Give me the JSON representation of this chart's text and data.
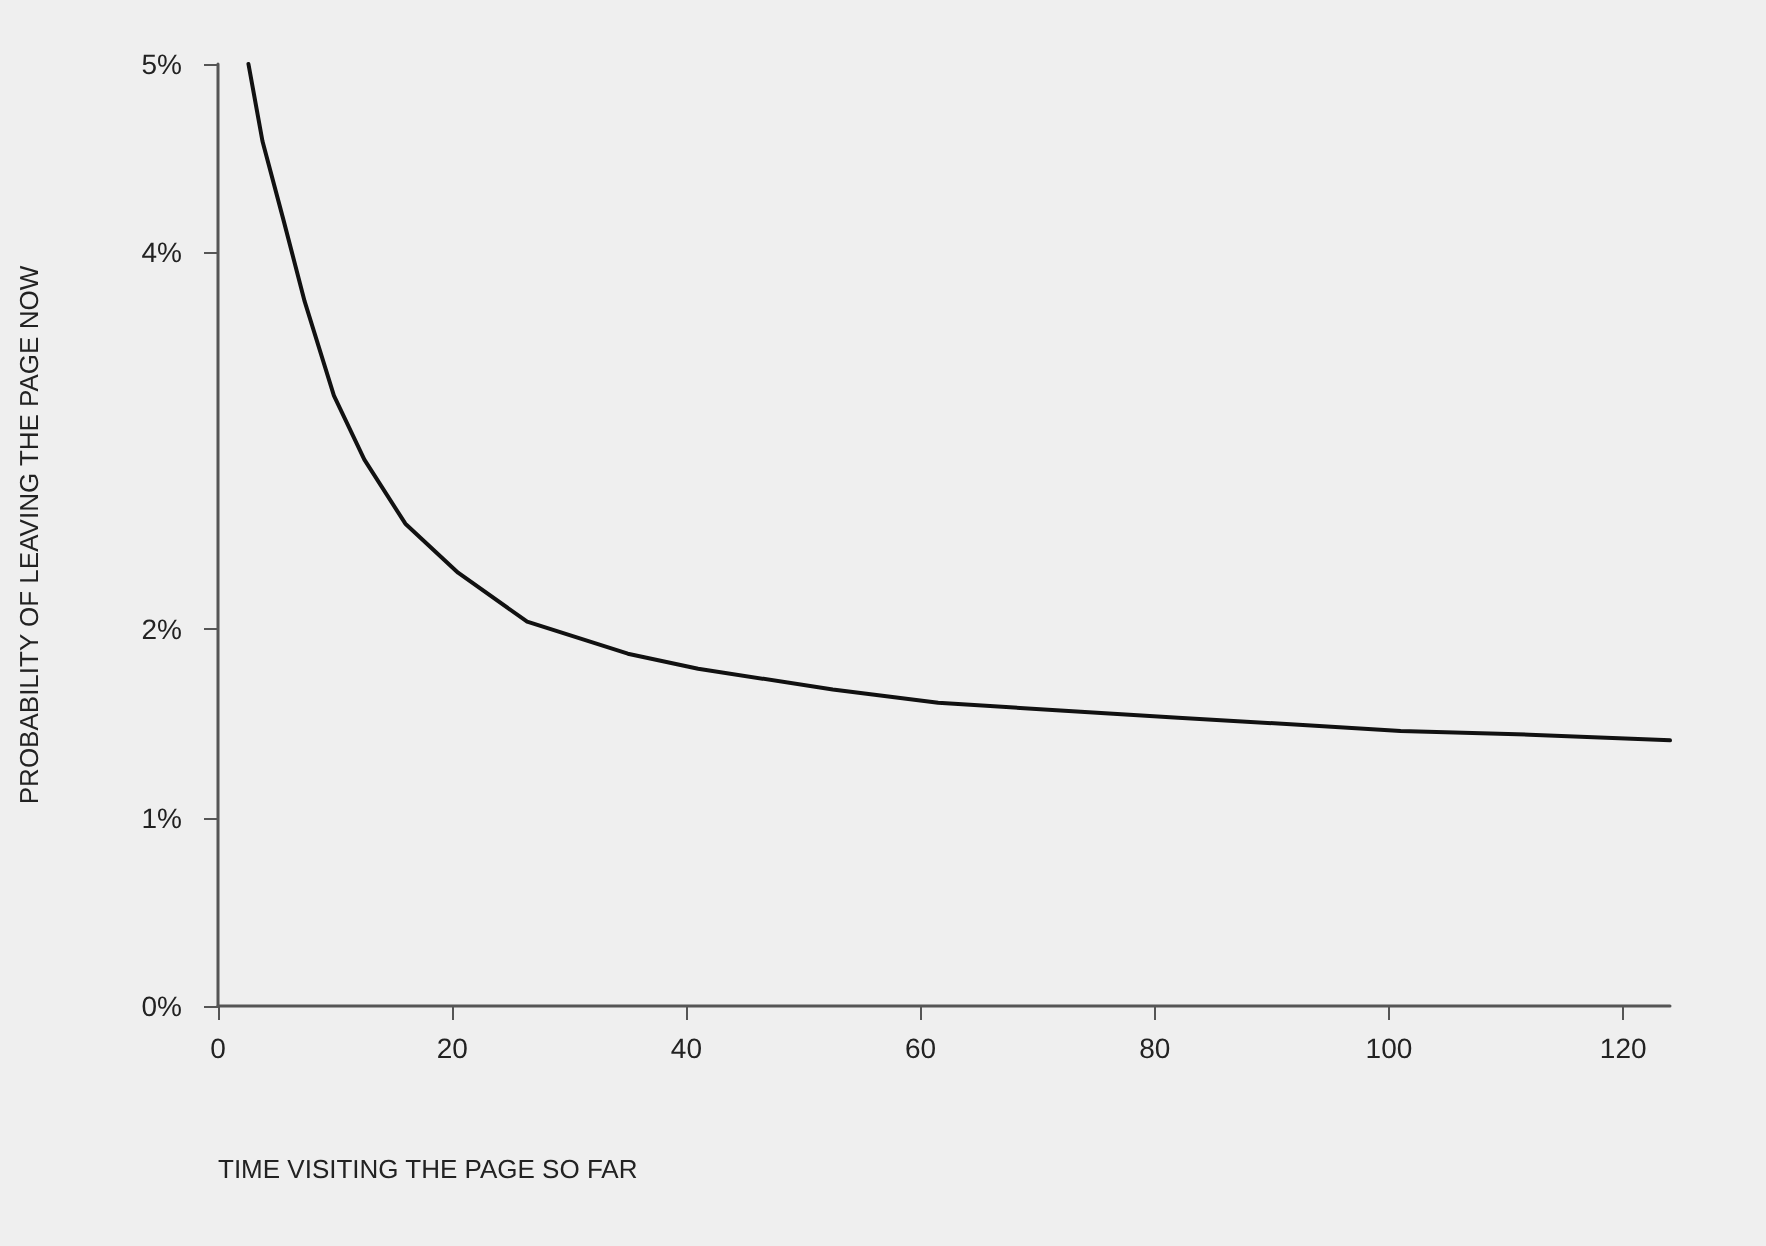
{
  "chart_data": {
    "type": "line",
    "xlabel": "TIME VISITING THE PAGE SO FAR",
    "ylabel": "PROBABILITY OF LEAVING THE PAGE NOW",
    "x": [
      2.6,
      3.8,
      5.6,
      7.4,
      9.9,
      12.5,
      16,
      20.5,
      26.4,
      35,
      41,
      52.5,
      61.5,
      71.6,
      82,
      93,
      101,
      112,
      124
    ],
    "series": [
      {
        "color": "#111111",
        "values": [
          5.0,
          4.59,
          4.17,
          3.74,
          3.24,
          2.9,
          2.56,
          2.3,
          2.04,
          1.87,
          1.79,
          1.68,
          1.61,
          1.57,
          1.53,
          1.49,
          1.46,
          1.44,
          1.41
        ]
      }
    ],
    "xlim": [
      0,
      124
    ],
    "xticks": [
      0,
      20,
      40,
      60,
      80,
      100,
      120
    ],
    "ylim": [
      0,
      5
    ],
    "yticks": [
      {
        "value": 0,
        "label": "0%"
      },
      {
        "value": 1,
        "label": "1%"
      },
      {
        "value": 2,
        "label": "2%"
      },
      {
        "value": 4,
        "label": "4%"
      },
      {
        "value": 5,
        "label": "5%"
      }
    ],
    "grid": false,
    "marker": "none",
    "line_style": "solid"
  }
}
